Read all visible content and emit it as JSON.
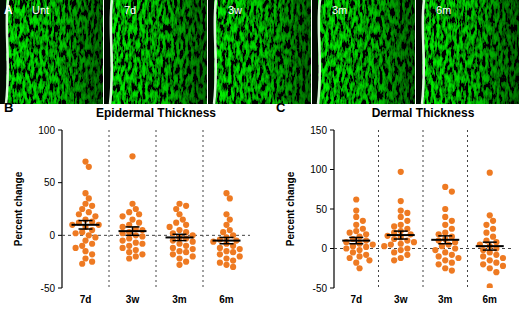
{
  "chart_data": [
    {
      "type": "image",
      "annotations": [
        "A"
      ],
      "categories": [
        "Unt",
        "7d",
        "3w",
        "3m",
        "6m"
      ]
    },
    {
      "type": "dot",
      "title": "Epidermal Thickness",
      "ylabel": "Percent change",
      "annotations": [
        "B"
      ],
      "categories": [
        "7d",
        "3w",
        "3m",
        "6m"
      ],
      "values": [
        [
          70,
          65,
          40,
          35,
          30,
          28,
          25,
          22,
          20,
          18,
          15,
          13,
          12,
          10,
          10,
          8,
          5,
          3,
          2,
          0,
          -2,
          -5,
          -8,
          -10,
          -12,
          -15,
          -18,
          -22,
          -25,
          -27
        ],
        [
          75,
          30,
          25,
          22,
          20,
          18,
          15,
          12,
          10,
          8,
          6,
          5,
          3,
          2,
          0,
          -1,
          -3,
          -5,
          -7,
          -8,
          -10,
          -12,
          -14,
          -16,
          -18,
          -20,
          -22
        ],
        [
          30,
          28,
          25,
          20,
          15,
          12,
          10,
          8,
          5,
          3,
          2,
          0,
          -2,
          -3,
          -5,
          -6,
          -8,
          -10,
          -12,
          -13,
          -15,
          -16,
          -18,
          -20,
          -22,
          -25,
          -28
        ],
        [
          40,
          35,
          20,
          15,
          10,
          5,
          3,
          0,
          -2,
          -4,
          -5,
          -6,
          -8,
          -10,
          -12,
          -13,
          -15,
          -16,
          -18,
          -20,
          -22,
          -24,
          -26,
          -28,
          -30
        ]
      ],
      "means": [
        10,
        4,
        -2,
        -5
      ],
      "errors": [
        4,
        4,
        3,
        3
      ],
      "reference": 0,
      "ylim": [
        -50,
        100
      ],
      "yticks": [
        -50,
        0,
        50,
        100
      ],
      "color": "#ee7a22"
    },
    {
      "type": "dot",
      "title": "Dermal Thickness",
      "ylabel": "Percent change",
      "annotations": [
        "C"
      ],
      "categories": [
        "7d",
        "3w",
        "3m",
        "6m"
      ],
      "values": [
        [
          62,
          48,
          40,
          35,
          30,
          25,
          22,
          20,
          18,
          15,
          12,
          10,
          8,
          6,
          5,
          3,
          2,
          0,
          -2,
          -5,
          -8,
          -10,
          -12,
          -15,
          -18,
          -25
        ],
        [
          97,
          60,
          48,
          45,
          40,
          35,
          30,
          28,
          25,
          22,
          20,
          18,
          16,
          14,
          12,
          10,
          8,
          6,
          5,
          3,
          0,
          -2,
          -5,
          -8,
          -12,
          -15
        ],
        [
          78,
          72,
          50,
          40,
          35,
          30,
          25,
          20,
          18,
          15,
          12,
          10,
          8,
          5,
          3,
          0,
          -2,
          -5,
          -8,
          -10,
          -12,
          -15,
          -18,
          -20,
          -25,
          -28
        ],
        [
          96,
          42,
          35,
          30,
          25,
          20,
          15,
          10,
          8,
          5,
          3,
          0,
          -2,
          -5,
          -8,
          -10,
          -12,
          -15,
          -18,
          -20,
          -22,
          -25,
          -30,
          -48
        ]
      ],
      "means": [
        10,
        17,
        11,
        3
      ],
      "errors": [
        4,
        5,
        5,
        5
      ],
      "reference": 0,
      "ylim": [
        -50,
        150
      ],
      "yticks": [
        -50,
        0,
        50,
        100,
        150
      ],
      "color": "#ee7a22"
    }
  ]
}
